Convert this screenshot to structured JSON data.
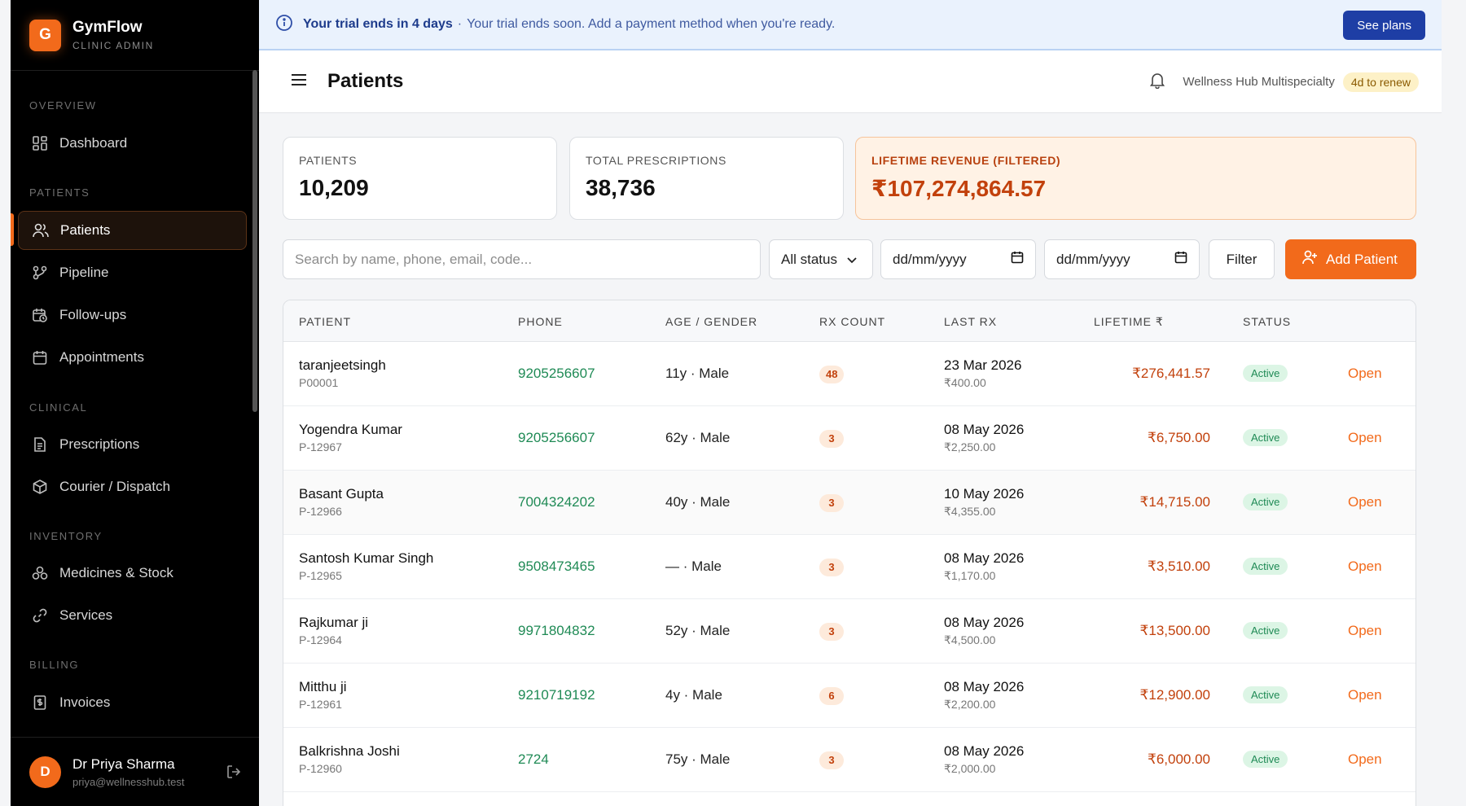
{
  "brand": {
    "logo_letter": "G",
    "name": "GymFlow",
    "subtitle": "CLINIC ADMIN"
  },
  "sidebar": {
    "sections": [
      "OVERVIEW",
      "PATIENTS",
      "CLINICAL",
      "INVENTORY",
      "BILLING"
    ],
    "items": [
      {
        "label": "Dashboard",
        "icon": "dashboard-icon"
      },
      {
        "label": "Patients",
        "icon": "users-icon",
        "active": true
      },
      {
        "label": "Pipeline",
        "icon": "pipeline-icon"
      },
      {
        "label": "Follow-ups",
        "icon": "calendar-clock-icon"
      },
      {
        "label": "Appointments",
        "icon": "calendar-icon"
      },
      {
        "label": "Prescriptions",
        "icon": "document-icon"
      },
      {
        "label": "Courier / Dispatch",
        "icon": "package-icon"
      },
      {
        "label": "Medicines & Stock",
        "icon": "boxes-icon"
      },
      {
        "label": "Services",
        "icon": "link-icon"
      },
      {
        "label": "Invoices",
        "icon": "receipt-icon"
      }
    ]
  },
  "user": {
    "avatar_letter": "D",
    "name": "Dr Priya Sharma",
    "email": "priya@wellnesshub.test"
  },
  "banner": {
    "title": "Your trial ends in 4 days",
    "separator": "·",
    "message": "Your trial ends soon. Add a payment method when you're ready.",
    "button": "See plans"
  },
  "header": {
    "title": "Patients",
    "clinic": "Wellness Hub Multispecialty",
    "renew_badge": "4d to renew"
  },
  "stats": [
    {
      "label": "PATIENTS",
      "value": "10,209"
    },
    {
      "label": "TOTAL PRESCRIPTIONS",
      "value": "38,736"
    },
    {
      "label": "LIFETIME REVENUE (FILTERED)",
      "value": "₹107,274,864.57"
    }
  ],
  "filters": {
    "search_placeholder": "Search by name, phone, email, code...",
    "status_value": "All status",
    "date_from_placeholder": "dd/mm/yyyy",
    "date_to_placeholder": "dd/mm/yyyy",
    "filter_button": "Filter",
    "add_button": "Add Patient"
  },
  "table": {
    "columns": [
      "PATIENT",
      "PHONE",
      "AGE / GENDER",
      "RX COUNT",
      "LAST RX",
      "LIFETIME ₹",
      "STATUS"
    ],
    "rows": [
      {
        "name": "taranjeetsingh",
        "code": "P00001",
        "phone": "9205256607",
        "age_gender": "11y · Male",
        "rx": "48",
        "last_rx_date": "23 Mar 2026",
        "last_rx_amount": "₹400.00",
        "lifetime": "₹276,441.57",
        "status": "Active",
        "action": "Open"
      },
      {
        "name": "Yogendra Kumar",
        "code": "P-12967",
        "phone": "9205256607",
        "age_gender": "62y · Male",
        "rx": "3",
        "last_rx_date": "08 May 2026",
        "last_rx_amount": "₹2,250.00",
        "lifetime": "₹6,750.00",
        "status": "Active",
        "action": "Open"
      },
      {
        "name": "Basant Gupta",
        "code": "P-12966",
        "phone": "7004324202",
        "age_gender": "40y · Male",
        "rx": "3",
        "last_rx_date": "10 May 2026",
        "last_rx_amount": "₹4,355.00",
        "lifetime": "₹14,715.00",
        "status": "Active",
        "action": "Open"
      },
      {
        "name": "Santosh Kumar Singh",
        "code": "P-12965",
        "phone": "9508473465",
        "age_gender": "— · Male",
        "rx": "3",
        "last_rx_date": "08 May 2026",
        "last_rx_amount": "₹1,170.00",
        "lifetime": "₹3,510.00",
        "status": "Active",
        "action": "Open"
      },
      {
        "name": "Rajkumar ji",
        "code": "P-12964",
        "phone": "9971804832",
        "age_gender": "52y · Male",
        "rx": "3",
        "last_rx_date": "08 May 2026",
        "last_rx_amount": "₹4,500.00",
        "lifetime": "₹13,500.00",
        "status": "Active",
        "action": "Open"
      },
      {
        "name": "Mitthu ji",
        "code": "P-12961",
        "phone": "9210719192",
        "age_gender": "4y · Male",
        "rx": "6",
        "last_rx_date": "08 May 2026",
        "last_rx_amount": "₹2,200.00",
        "lifetime": "₹12,900.00",
        "status": "Active",
        "action": "Open"
      },
      {
        "name": "Balkrishna Joshi",
        "code": "P-12960",
        "phone": "2724",
        "age_gender": "75y · Male",
        "rx": "3",
        "last_rx_date": "08 May 2026",
        "last_rx_amount": "₹2,000.00",
        "lifetime": "₹6,000.00",
        "status": "Active",
        "action": "Open"
      }
    ]
  },
  "colors": {
    "accent": "#f26a1b",
    "sidebar_bg": "#000000",
    "banner_bg": "#eaf2fd",
    "status_green": "#1f8a55"
  }
}
